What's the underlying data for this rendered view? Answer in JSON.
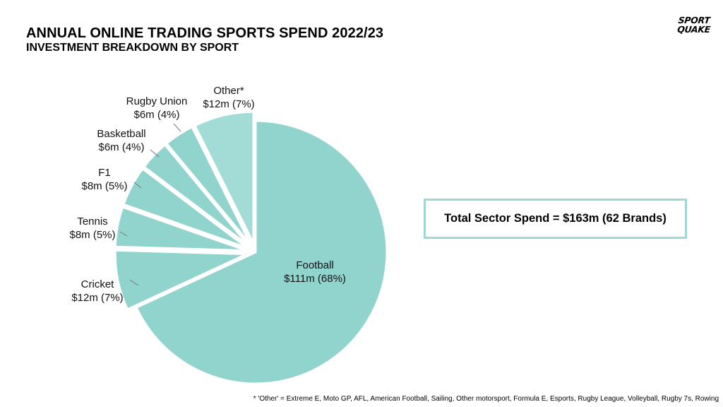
{
  "header": {
    "title": "ANNUAL ONLINE TRADING SPORTS SPEND 2022/23",
    "subtitle": "INVESTMENT BREAKDOWN BY SPORT"
  },
  "logo": {
    "line1": "SPORT",
    "line2": "QUAKE"
  },
  "total_box": {
    "text": "Total Sector Spend = $163m (62 Brands)"
  },
  "footnote": "* 'Other' = Extreme E, Moto GP, AFL, American Football, Sailing, Other motorsport, Formula E, Esports, Rugby League, Volleyball, Rugby 7s, Rowing",
  "colors": {
    "football": "#91d4ce",
    "slices": "#91d4ce",
    "other": "#a3dcd7",
    "stroke": "#ffffff",
    "leader": "#777777",
    "box_border": "#9fd9d4"
  },
  "chart_data": {
    "type": "pie",
    "title": "ANNUAL ONLINE TRADING SPORTS SPEND 2022/23",
    "subtitle": "INVESTMENT BREAKDOWN BY SPORT",
    "exploded": [
      "Cricket",
      "Tennis",
      "F1",
      "Basketball",
      "Rugby Union",
      "Other*"
    ],
    "slices": [
      {
        "name": "Football",
        "value": 111,
        "percent": 68,
        "label_line2": "$111m (68%)"
      },
      {
        "name": "Cricket",
        "value": 12,
        "percent": 7,
        "label_line2": "$12m (7%)"
      },
      {
        "name": "Tennis",
        "value": 8,
        "percent": 5,
        "label_line2": "$8m (5%)"
      },
      {
        "name": "F1",
        "value": 8,
        "percent": 5,
        "label_line2": "$8m (5%)"
      },
      {
        "name": "Basketball",
        "value": 6,
        "percent": 4,
        "label_line2": "$6m (4%)"
      },
      {
        "name": "Rugby Union",
        "value": 6,
        "percent": 4,
        "label_line2": "$6m (4%)"
      },
      {
        "name": "Other*",
        "value": 12,
        "percent": 7,
        "label_line2": "$12m (7%)"
      }
    ]
  }
}
